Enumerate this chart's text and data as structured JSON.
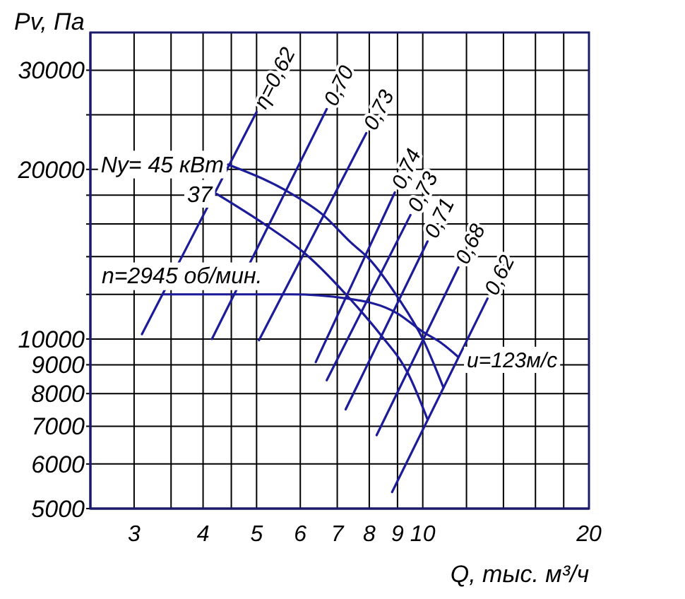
{
  "chart_data": {
    "type": "line",
    "xlabel": "Q, тыс. м³/ч",
    "ylabel": "Pv, Па",
    "log": "xy",
    "grid": true,
    "xlim": [
      2.5,
      20
    ],
    "ylim": [
      5000,
      35000
    ],
    "xticks": [
      3,
      {
        "value": 3.5,
        "label": null
      },
      4,
      {
        "value": 4.5,
        "label": null
      },
      5,
      6,
      7,
      8,
      9,
      10,
      {
        "value": 12,
        "label": null
      },
      {
        "value": 14,
        "label": null
      },
      {
        "value": 16,
        "label": null
      },
      {
        "value": 18,
        "label": null
      },
      20
    ],
    "yticks": [
      5000,
      6000,
      7000,
      8000,
      9000,
      10000,
      {
        "value": 12000,
        "label": null
      },
      {
        "value": 14000,
        "label": null
      },
      {
        "value": 16000,
        "label": null
      },
      {
        "value": 18000,
        "label": null
      },
      20000,
      {
        "value": 25000,
        "label": null
      },
      30000
    ],
    "series": [
      {
        "name": "n=2945 об/мин.",
        "color": "#1c1c9a",
        "x": [
          3.38,
          5.76,
          7.3,
          9.0,
          10.0,
          10.8,
          11.6
        ],
        "values": [
          12000,
          12000,
          11800,
          11100,
          10300,
          9840,
          9290
        ]
      },
      {
        "name": "Ny= 45 кВт",
        "color": "#1c1c9a",
        "x": [
          4.44,
          5.62,
          6.6,
          7.43,
          7.98,
          9.04,
          10.0,
          10.9
        ],
        "values": [
          20400,
          18400,
          16600,
          14800,
          13900,
          11800,
          10000,
          8200
        ]
      },
      {
        "name": "37",
        "color": "#1c1c9a",
        "x": [
          4.23,
          5.21,
          6.11,
          7.43,
          8.37,
          9.42,
          10.2
        ],
        "values": [
          18100,
          15900,
          14200,
          11700,
          10200,
          8660,
          7200
        ]
      },
      {
        "name": "η=0,62",
        "color": "#1c1c9a",
        "x": [
          3.1,
          5.0
        ],
        "values": [
          10200,
          25300
        ]
      },
      {
        "name": "0,70",
        "color": "#1c1c9a",
        "x": [
          4.15,
          6.7
        ],
        "values": [
          10000,
          25600
        ]
      },
      {
        "name": "0,73",
        "color": "#1c1c9a",
        "x": [
          5.05,
          7.9
        ],
        "values": [
          9950,
          23200
        ]
      },
      {
        "name": "0,74",
        "color": "#1c1c9a",
        "x": [
          6.4,
          8.9
        ],
        "values": [
          9100,
          18200
        ]
      },
      {
        "name": "0,73",
        "color": "#1c1c9a",
        "x": [
          6.7,
          9.5
        ],
        "values": [
          8450,
          16600
        ]
      },
      {
        "name": "0,71",
        "color": "#1c1c9a",
        "x": [
          7.25,
          10.2
        ],
        "values": [
          7500,
          14900
        ]
      },
      {
        "name": "0,68",
        "color": "#1c1c9a",
        "x": [
          8.25,
          11.6
        ],
        "values": [
          6750,
          13400
        ]
      },
      {
        "name": "0,62",
        "color": "#1c1c9a",
        "x": [
          8.8,
          13.1
        ],
        "values": [
          5350,
          11800
        ]
      }
    ],
    "annotations": [
      {
        "text": "u=123м/с",
        "x": 11.6,
        "y": 9290
      }
    ]
  }
}
